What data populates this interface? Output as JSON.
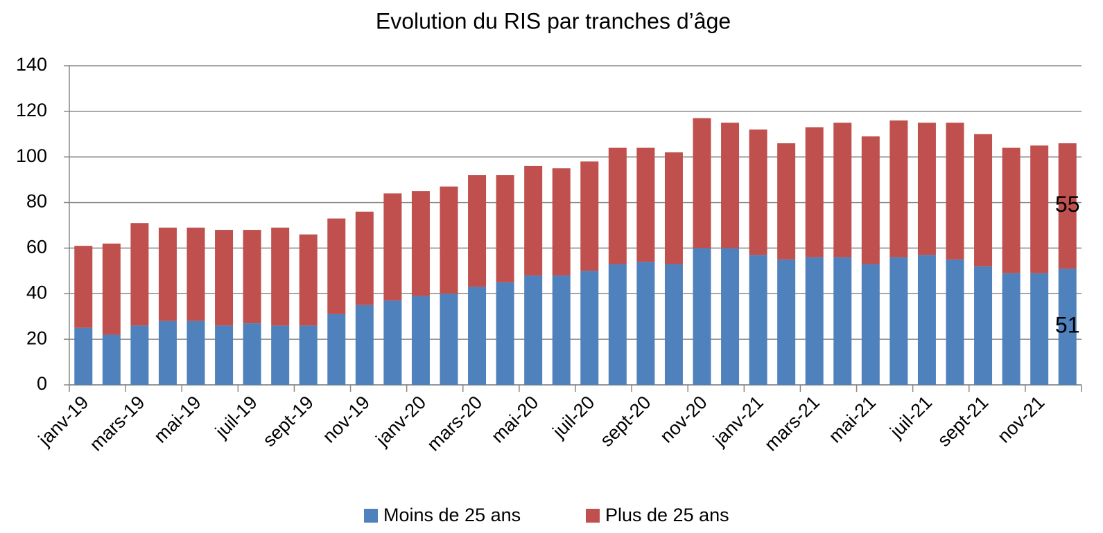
{
  "chart_data": {
    "type": "stacked_bar",
    "title": "Evolution du RIS par tranches d’âge",
    "categories": [
      "janv-19",
      null,
      "mars-19",
      null,
      "mai-19",
      null,
      "juil-19",
      null,
      "sept-19",
      null,
      "nov-19",
      null,
      "janv-20",
      null,
      "mars-20",
      null,
      "mai-20",
      null,
      "juil-20",
      null,
      "sept-20",
      null,
      "nov-20",
      null,
      "janv-21",
      null,
      "mars-21",
      null,
      "mai-21",
      null,
      "juil-21",
      null,
      "sept-21",
      null,
      "nov-21",
      null
    ],
    "series": [
      {
        "name": "Moins de 25 ans",
        "color": "#4f81bd",
        "values": [
          25,
          22,
          26,
          28,
          28,
          26,
          27,
          26,
          26,
          31,
          35,
          37,
          39,
          40,
          43,
          45,
          48,
          48,
          50,
          53,
          54,
          53,
          60,
          60,
          57,
          55,
          56,
          56,
          53,
          56,
          57,
          55,
          52,
          49,
          49,
          51
        ]
      },
      {
        "name": "Plus de 25 ans",
        "color": "#c0504d",
        "values": [
          36,
          40,
          45,
          41,
          41,
          42,
          41,
          43,
          40,
          42,
          41,
          47,
          46,
          47,
          49,
          47,
          48,
          47,
          48,
          51,
          50,
          49,
          57,
          55,
          55,
          51,
          57,
          59,
          56,
          60,
          58,
          60,
          58,
          55,
          56,
          55
        ]
      }
    ],
    "ylim": [
      0,
      140
    ],
    "yticks": [
      0,
      20,
      40,
      60,
      80,
      100,
      120,
      140
    ],
    "grid": true,
    "legend": "bottom"
  }
}
